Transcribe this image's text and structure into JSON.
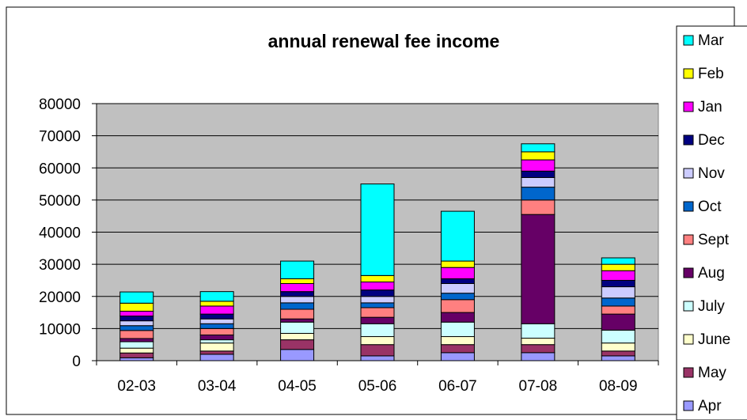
{
  "chart_data": {
    "type": "bar",
    "stacked": true,
    "title": "annual renewal fee income",
    "xlabel": "",
    "ylabel": "",
    "ylim": [
      0,
      80000
    ],
    "yticks": [
      0,
      10000,
      20000,
      30000,
      40000,
      50000,
      60000,
      70000,
      80000
    ],
    "categories": [
      "02-03",
      "03-04",
      "04-05",
      "05-06",
      "06-07",
      "07-08",
      "08-09"
    ],
    "grid": true,
    "legend": "right",
    "plot_background": "#C0C0C0",
    "series": [
      {
        "name": "Apr",
        "color": "#9999FF",
        "values": [
          900,
          2000,
          3500,
          1500,
          2500,
          2500,
          1500
        ]
      },
      {
        "name": "May",
        "color": "#993366",
        "values": [
          1500,
          1000,
          3000,
          3500,
          2500,
          2500,
          1500
        ]
      },
      {
        "name": "June",
        "color": "#FFFFCC",
        "values": [
          1500,
          2500,
          2000,
          2500,
          2500,
          2000,
          2500
        ]
      },
      {
        "name": "July",
        "color": "#CCFFFF",
        "values": [
          2000,
          1000,
          3500,
          4000,
          4500,
          4500,
          4000
        ]
      },
      {
        "name": "Aug",
        "color": "#660066",
        "values": [
          1000,
          1500,
          1000,
          2000,
          3000,
          34000,
          5000
        ]
      },
      {
        "name": "Sept",
        "color": "#FF8080",
        "values": [
          2500,
          2000,
          3000,
          3000,
          4000,
          4500,
          2500
        ]
      },
      {
        "name": "Oct",
        "color": "#0066CC",
        "values": [
          1500,
          1500,
          2000,
          1500,
          2000,
          4000,
          2500
        ]
      },
      {
        "name": "Nov",
        "color": "#CCCCFF",
        "values": [
          1500,
          1500,
          2000,
          2000,
          3000,
          3000,
          3500
        ]
      },
      {
        "name": "Dec",
        "color": "#000080",
        "values": [
          1500,
          1500,
          1500,
          2000,
          1500,
          2000,
          2000
        ]
      },
      {
        "name": "Jan",
        "color": "#FF00FF",
        "values": [
          1500,
          2500,
          2500,
          2500,
          3500,
          3500,
          3000
        ]
      },
      {
        "name": "Feb",
        "color": "#FFFF00",
        "values": [
          2500,
          1500,
          1500,
          2000,
          2000,
          2500,
          2000
        ]
      },
      {
        "name": "Mar",
        "color": "#00FFFF",
        "values": [
          3500,
          3000,
          5500,
          28500,
          15500,
          2500,
          2000
        ]
      }
    ]
  }
}
